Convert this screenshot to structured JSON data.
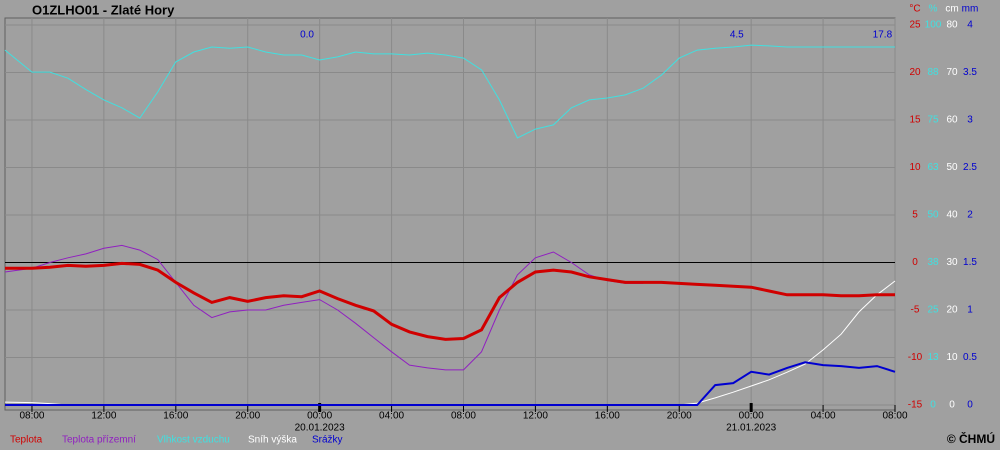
{
  "chart_data": {
    "type": "line",
    "title": "O1ZLHO01 - Zlaté Hory",
    "credit": "© ČHMÚ",
    "x": [
      -1.5,
      0,
      1,
      2,
      3,
      4,
      5,
      6,
      7,
      8,
      9,
      10,
      11,
      12,
      13,
      14,
      15,
      16,
      17,
      18,
      19,
      20,
      21,
      22,
      23,
      24,
      25,
      26,
      27,
      28,
      29,
      30,
      31,
      32,
      33,
      34,
      35,
      36,
      37,
      38,
      39,
      40,
      41,
      42,
      43,
      44,
      45,
      46,
      47,
      48
    ],
    "xlim": [
      -1.5,
      48
    ],
    "xticks": [
      {
        "value": 0,
        "label": "08:00"
      },
      {
        "value": 4,
        "label": "12:00"
      },
      {
        "value": 8,
        "label": "16:00"
      },
      {
        "value": 12,
        "label": "20:00"
      },
      {
        "value": 16,
        "label": "00:00"
      },
      {
        "value": 20,
        "label": "04:00"
      },
      {
        "value": 24,
        "label": "08:00"
      },
      {
        "value": 28,
        "label": "12:00"
      },
      {
        "value": 32,
        "label": "16:00"
      },
      {
        "value": 36,
        "label": "20:00"
      },
      {
        "value": 40,
        "label": "00:00"
      },
      {
        "value": 44,
        "label": "04:00"
      },
      {
        "value": 48,
        "label": "08:00"
      }
    ],
    "date_labels": [
      {
        "x": 16,
        "text": "20.01.2023"
      },
      {
        "x": 40,
        "text": "21.01.2023"
      }
    ],
    "precip_totals": [
      {
        "x": 15.3,
        "text": "0.0"
      },
      {
        "x": 39.2,
        "text": "4.5"
      },
      {
        "x": 47.3,
        "text": "17.8"
      }
    ],
    "grid": true,
    "zero_line": true,
    "ylim": [
      -15,
      25
    ],
    "yunit": "°C",
    "ycolor": "#d00000",
    "yticks": [
      25,
      20,
      15,
      10,
      5,
      0,
      -5,
      -10,
      -15
    ],
    "y2lim": [
      0,
      100
    ],
    "y2unit": "%",
    "y2color": "#40e0e0",
    "y2ticks": [
      100,
      {
        "value": 87.5,
        "label": "88"
      },
      75,
      {
        "value": 62.5,
        "label": "63"
      },
      50,
      {
        "value": 37.5,
        "label": "38"
      },
      25,
      {
        "value": 12.5,
        "label": "13"
      },
      0
    ],
    "y3lim": [
      0,
      80
    ],
    "y3unit": "cm",
    "y3color": "#ffffff",
    "y3ticks": [
      80,
      70,
      60,
      50,
      40,
      30,
      20,
      10,
      0
    ],
    "y4lim": [
      0,
      4
    ],
    "y4unit": "mm",
    "y4color": "#0000d0",
    "y4ticks": [
      4,
      3.5,
      3,
      2.5,
      2,
      1.5,
      1,
      0.5,
      0
    ],
    "series": [
      {
        "name": "Teplota",
        "color": "#d00000",
        "axis": "y",
        "values": [
          -0.6,
          -0.6,
          -0.5,
          -0.3,
          -0.4,
          -0.3,
          -0.1,
          -0.2,
          -0.8,
          -2.1,
          -3.2,
          -4.2,
          -3.7,
          -4.1,
          -3.7,
          -3.5,
          -3.6,
          -3.0,
          -3.8,
          -4.5,
          -5.1,
          -6.5,
          -7.3,
          -7.8,
          -8.1,
          -8.0,
          -7.1,
          -3.7,
          -2.1,
          -1.0,
          -0.8,
          -1.0,
          -1.5,
          -1.8,
          -2.1,
          -2.1,
          -2.1,
          -2.2,
          -2.3,
          -2.4,
          -2.5,
          -2.6,
          -3.0,
          -3.4,
          -3.4,
          -3.4,
          -3.5,
          -3.5,
          -3.4,
          -3.4
        ]
      },
      {
        "name": "Teplota přízemní",
        "color": "#9020c0",
        "axis": "y",
        "values": [
          -1.0,
          -0.6,
          0,
          0.5,
          0.9,
          1.5,
          1.8,
          1.3,
          0.3,
          -2.1,
          -4.5,
          -5.8,
          -5.2,
          -5.0,
          -5.0,
          -4.5,
          -4.2,
          -3.9,
          -5.0,
          -6.4,
          -7.9,
          -9.4,
          -10.8,
          -11.1,
          -11.3,
          -11.3,
          -9.4,
          -5.0,
          -1.3,
          0.5,
          1.1,
          0,
          -1.3,
          -1.9,
          -2.2,
          -2.2,
          null,
          null,
          null,
          null,
          null,
          null,
          null,
          null,
          null,
          null,
          null,
          null,
          null,
          null
        ]
      },
      {
        "name": "Vlhkost vzduchu",
        "color": "#40e0e0",
        "axis": "y2",
        "values": [
          93.4,
          87.6,
          87.6,
          86,
          83,
          80.3,
          78.2,
          75.5,
          82.4,
          90.3,
          92.9,
          94.2,
          93.9,
          94.2,
          92.9,
          92.1,
          92.1,
          90.8,
          91.6,
          92.9,
          92.4,
          92.4,
          92.1,
          92.6,
          92.1,
          91.3,
          88.2,
          80.3,
          70.3,
          72.6,
          73.7,
          78.2,
          80.3,
          80.8,
          81.6,
          83.4,
          86.8,
          91.3,
          93.4,
          93.9,
          94.2,
          94.7,
          94.5,
          94.2,
          94.2,
          94.2,
          94.2,
          94.2,
          94.2,
          94.2
        ]
      },
      {
        "name": "Sníh výška",
        "color": "#ffffff",
        "axis": "y3",
        "values": [
          0.6,
          0.5,
          0.3,
          0,
          0,
          0,
          0,
          0,
          0,
          0,
          0,
          0,
          0,
          0,
          0,
          0,
          0,
          0,
          0,
          0,
          0,
          0,
          0,
          0,
          0,
          0,
          0,
          0,
          0,
          0,
          0,
          0,
          0,
          0,
          0,
          0,
          0,
          0,
          0.4,
          1.5,
          2.7,
          4,
          5.3,
          6.9,
          8.6,
          11.6,
          14.9,
          19.6,
          23.2,
          26.1
        ]
      },
      {
        "name": "Srážky",
        "color": "#0000d0",
        "axis": "y4",
        "values": [
          0,
          0,
          0,
          0,
          0,
          0,
          0,
          0,
          0,
          0,
          0,
          0,
          0,
          0,
          0,
          0,
          0,
          0,
          0,
          0,
          0,
          0,
          0,
          0,
          0,
          0,
          0,
          0,
          0,
          0,
          0,
          0,
          0,
          0,
          0,
          0,
          0,
          0,
          0,
          0.21,
          0.23,
          0.35,
          0.32,
          0.39,
          0.45,
          0.42,
          0.41,
          0.39,
          0.41,
          0.35
        ]
      }
    ]
  }
}
